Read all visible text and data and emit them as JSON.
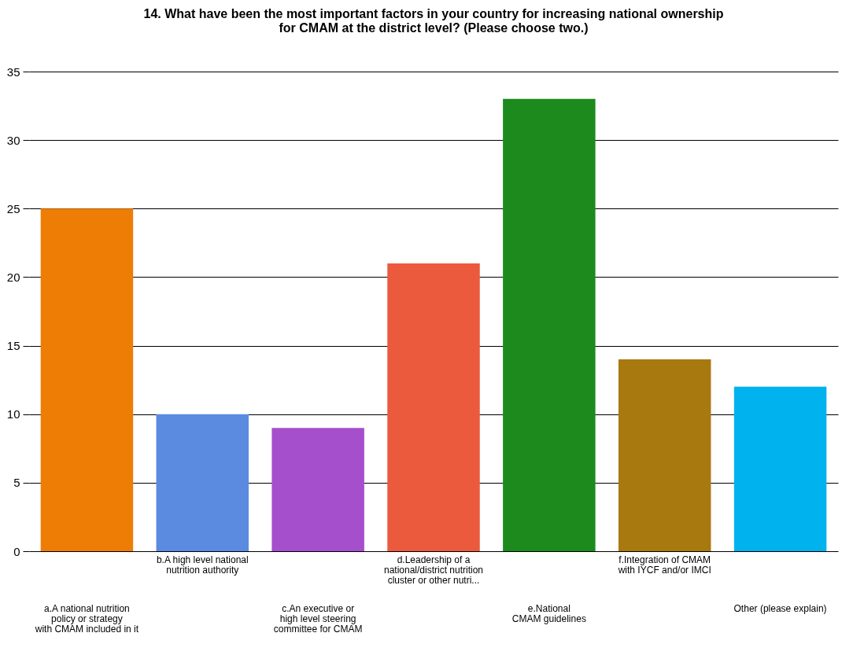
{
  "chart_data": {
    "type": "bar",
    "title": "14. What have been the most important factors in your country for increasing national ownership\nfor CMAM at the district level? (Please choose two.)",
    "categories": [
      "a.A national nutrition\npolicy or strategy\nwith CMAM included in it",
      "b.A high level national\nnutrition authority",
      "c.An executive or\nhigh level steering\ncommittee for CMAM",
      "d.Leadership of a\nnational/district nutrition\ncluster or other nutri...",
      "e.National\nCMAM guidelines",
      "f.Integration of CMAM\nwith IYCF and/or IMCI",
      "Other (please explain)"
    ],
    "values": [
      25,
      10,
      9,
      21,
      33,
      14,
      12
    ],
    "colors": [
      "#ee7d06",
      "#5b8be0",
      "#a64fcc",
      "#ec5a3e",
      "#1c8a1c",
      "#a8790e",
      "#00b2ee"
    ],
    "ylim": [
      0,
      35
    ],
    "yticks": [
      0,
      5,
      10,
      15,
      20,
      25,
      30,
      35
    ],
    "grid": "y"
  }
}
